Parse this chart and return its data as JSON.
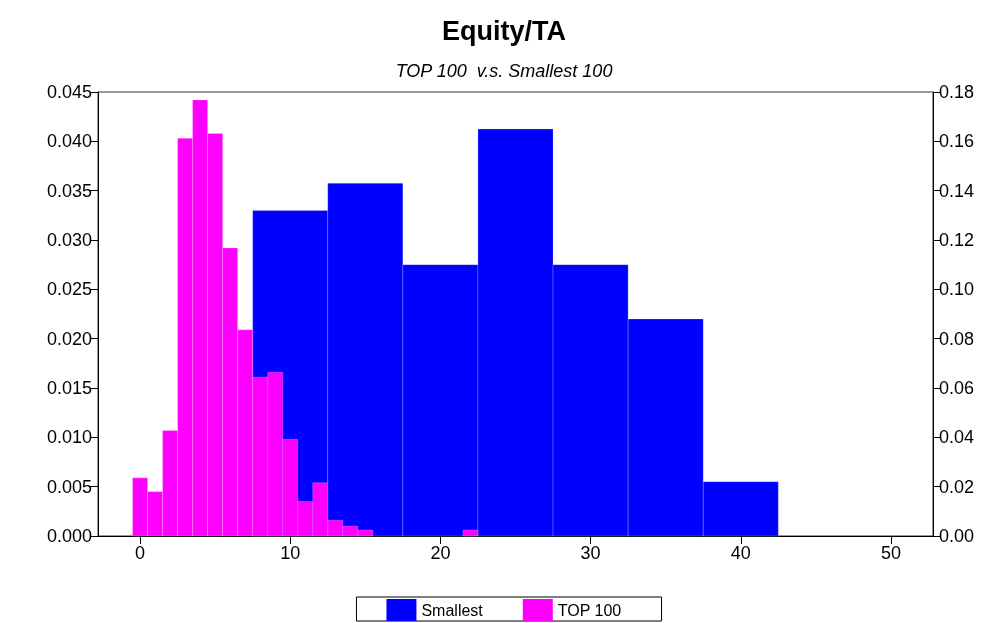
{
  "chart_data": {
    "type": "bar",
    "title": "Equity/TA",
    "subtitle": "TOP 100  v.s. Smallest 100",
    "series": [
      {
        "name": "Smallest",
        "color": "#0000ff",
        "axis": "y2",
        "x": [
          10,
          15,
          20,
          25,
          30,
          35,
          40
        ],
        "values": [
          0.132,
          0.143,
          0.11,
          0.165,
          0.11,
          0.088,
          0.022
        ]
      },
      {
        "name": "TOP 100",
        "color": "#ff00ff",
        "x": [
          0,
          1,
          2,
          3,
          4,
          5,
          6,
          7,
          8,
          9,
          10,
          11,
          12,
          13,
          14,
          15,
          16,
          17,
          18,
          19,
          20,
          21,
          22
        ],
        "values": [
          0.0059,
          0.0045,
          0.0107,
          0.0403,
          0.0442,
          0.0408,
          0.0292,
          0.0209,
          0.0161,
          0.0166,
          0.0098,
          0.0035,
          0.0054,
          0.0016,
          0.001,
          0.0006,
          0,
          0,
          0,
          0,
          0,
          0,
          0.0006
        ]
      }
    ],
    "xlim": [
      -2.8,
      52.8
    ],
    "xticks": [
      0,
      10,
      20,
      30,
      40,
      50
    ],
    "ylim": [
      0,
      0.045
    ],
    "yticks": [
      {
        "value": 0,
        "label": "0.000"
      },
      {
        "value": 0.005,
        "label": "0.005"
      },
      {
        "value": 0.01,
        "label": "0.010"
      },
      {
        "value": 0.015,
        "label": "0.015"
      },
      {
        "value": 0.02,
        "label": "0.020"
      },
      {
        "value": 0.025,
        "label": "0.025"
      },
      {
        "value": 0.03,
        "label": "0.030"
      },
      {
        "value": 0.035,
        "label": "0.035"
      },
      {
        "value": 0.04,
        "label": "0.040"
      },
      {
        "value": 0.045,
        "label": "0.045"
      }
    ],
    "y2lim": [
      0,
      0.18
    ],
    "y2ticks": [
      {
        "value": 0,
        "label": "0.00"
      },
      {
        "value": 0.02,
        "label": "0.02"
      },
      {
        "value": 0.04,
        "label": "0.04"
      },
      {
        "value": 0.06,
        "label": "0.06"
      },
      {
        "value": 0.08,
        "label": "0.08"
      },
      {
        "value": 0.1,
        "label": "0.10"
      },
      {
        "value": 0.12,
        "label": "0.12"
      },
      {
        "value": 0.14,
        "label": "0.14"
      },
      {
        "value": 0.16,
        "label": "0.16"
      },
      {
        "value": 0.18,
        "label": "0.18"
      }
    ],
    "grid": false,
    "legend": "bottom"
  }
}
